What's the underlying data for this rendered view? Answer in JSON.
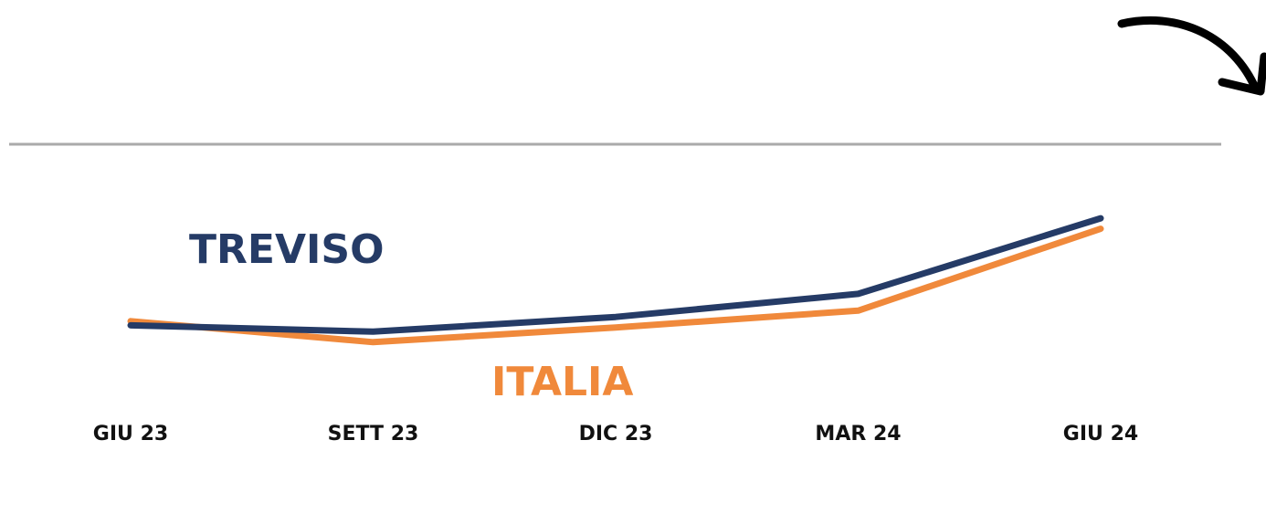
{
  "chart_data": {
    "type": "line",
    "categories": [
      "GIU 23",
      "SETT 23",
      "DIC 23",
      "MAR 24",
      "GIU 24"
    ],
    "series": [
      {
        "name": "TREVISO",
        "color": "#253b66",
        "values": [
          32,
          29,
          36,
          47,
          83
        ]
      },
      {
        "name": "ITALIA",
        "color": "#f0893b",
        "values": [
          34,
          24,
          31,
          39,
          78
        ]
      }
    ],
    "ylim": [
      0,
      100
    ]
  }
}
